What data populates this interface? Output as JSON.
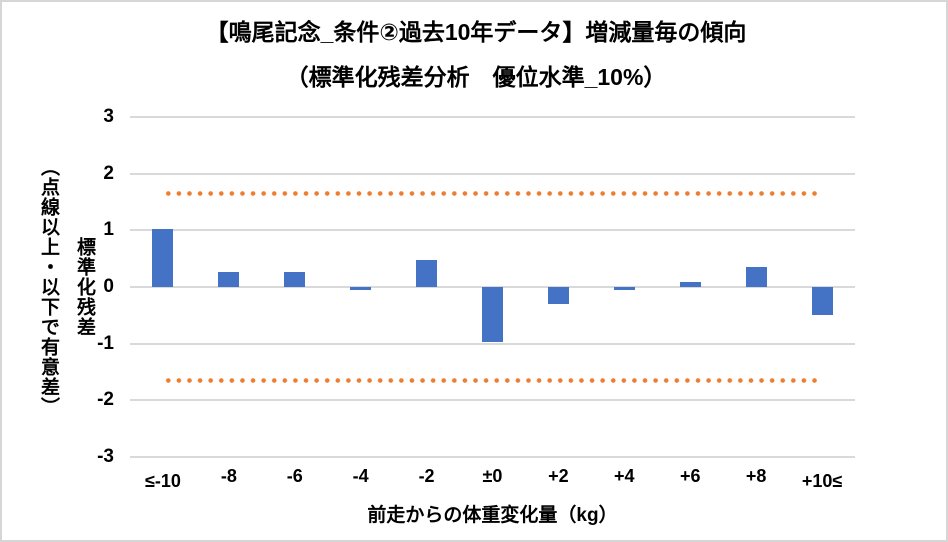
{
  "chart_data": {
    "type": "bar",
    "title_line1": "【鳴尾記念_条件②過去10年データ】増減量毎の傾向",
    "title_line2": "（標準化残差分析　優位水準_10%）",
    "categories": [
      "≤-10",
      "-8",
      "-6",
      "-4",
      "-2",
      "±0",
      "+2",
      "+4",
      "+6",
      "+8",
      "+10≤"
    ],
    "values": [
      1.03,
      0.26,
      0.26,
      -0.05,
      0.48,
      -0.97,
      -0.3,
      -0.05,
      0.08,
      0.36,
      -0.49
    ],
    "significance_level": 1.645,
    "yticks": [
      3,
      2,
      1,
      0,
      -1,
      -2,
      -3
    ],
    "ylim": [
      -3,
      3
    ],
    "xlabel": "前走からの体重変化量（kg）",
    "ylabel_line1": "標準化残差",
    "ylabel_line2": "（点線以上・以下で有意差）",
    "legend": "none",
    "grid": "horizontal",
    "colors": {
      "bar": "#4472C4",
      "significance_dotted": "#ED7D31",
      "gridline": "#D9D9D9",
      "text": "#000000",
      "border": "#D6D6D6"
    }
  }
}
